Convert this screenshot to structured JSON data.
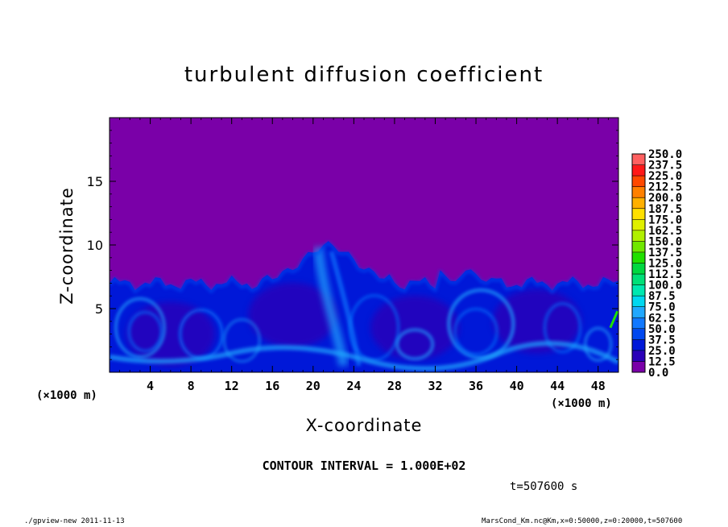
{
  "chart_data": {
    "type": "heatmap",
    "title": "turbulent diffusion coefficient",
    "xlabel": "X-coordinate",
    "ylabel": "Z-coordinate",
    "x_unit": "(×1000 m)",
    "y_unit": "(×1000 m)",
    "xlim": [
      0,
      50
    ],
    "ylim": [
      0,
      20
    ],
    "x_ticks": [
      4,
      8,
      12,
      16,
      20,
      24,
      28,
      32,
      36,
      40,
      44,
      48
    ],
    "y_ticks": [
      5,
      10,
      15
    ],
    "colorbar": {
      "levels": [
        0.0,
        12.5,
        25.0,
        37.5,
        50.0,
        62.5,
        75.0,
        87.5,
        100.0,
        112.5,
        125.0,
        137.5,
        150.0,
        162.5,
        175.0,
        187.5,
        200.0,
        212.5,
        225.0,
        237.5,
        250.0
      ],
      "labels": [
        "0.0",
        "12.5",
        "25.0",
        "37.5",
        "50.0",
        "62.5",
        "75.0",
        "87.5",
        "100.0",
        "112.5",
        "125.0",
        "137.5",
        "150.0",
        "162.5",
        "175.0",
        "187.5",
        "200.0",
        "212.5",
        "225.0",
        "237.5",
        "250.0"
      ],
      "colors": [
        "#7a00a8",
        "#2a00b8",
        "#0018d8",
        "#0048f0",
        "#1078ff",
        "#20a8ff",
        "#00d8f0",
        "#00e8b0",
        "#00e078",
        "#00d840",
        "#20e000",
        "#70e800",
        "#b0f000",
        "#e0f000",
        "#ffe000",
        "#ffb000",
        "#ff8000",
        "#ff4800",
        "#ff1818",
        "#ff6060"
      ]
    },
    "field_description_levels": {
      "background_value": 0.0,
      "boundary_layer_top_approx": [
        6.5,
        7.5
      ],
      "plume_peak_x": 21.5,
      "plume_peak_z": 10.4
    }
  },
  "annotations": {
    "x_unit_left": "(×1000 m)",
    "x_unit_right": "(×1000 m)",
    "contour_interval": "CONTOUR INTERVAL = 1.000E+02",
    "time": "t=507600  s"
  },
  "footer": {
    "left": "./gpview-new   2011-11-13",
    "right": "MarsCond_Km.nc@Km,x=0:50000,z=0:20000,t=507600"
  }
}
